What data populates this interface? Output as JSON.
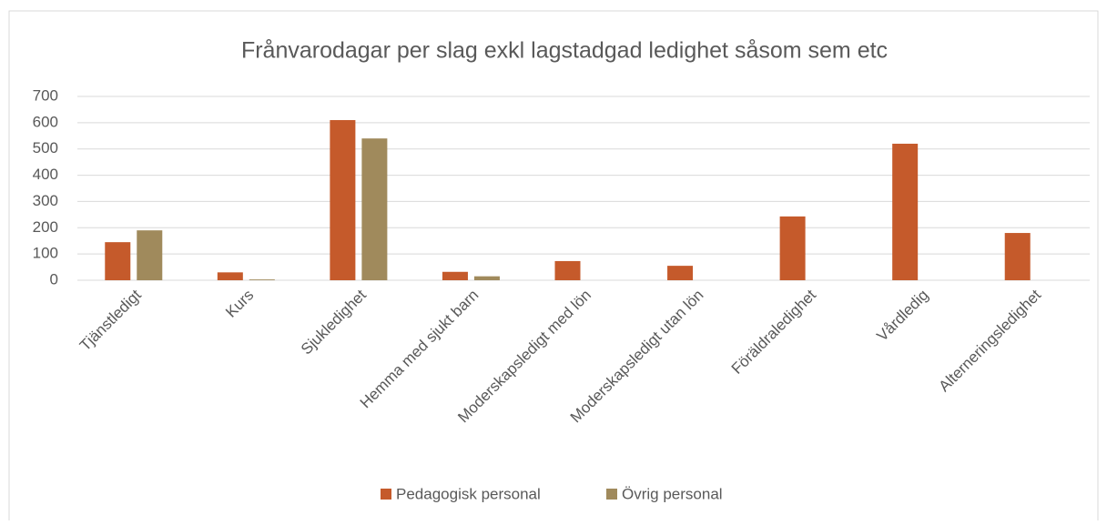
{
  "chart_data": {
    "type": "bar",
    "title": "Frånvarodagar per slag exkl lagstadgad ledighet såsom sem etc",
    "categories": [
      "Tjänstledigt",
      "Kurs",
      "Sjukledighet",
      "Hemma med sjukt barn",
      "Moderskapsledigt med lön",
      "Moderskapsledigt utan lön",
      "Föräldraledighet",
      "Vårdledig",
      "Alterneringsledighet"
    ],
    "series": [
      {
        "name": "Pedagogisk personal",
        "color": "#c55a2b",
        "values": [
          145,
          30,
          610,
          32,
          73,
          55,
          243,
          520,
          180
        ]
      },
      {
        "name": "Övrig personal",
        "color": "#a08a5c",
        "values": [
          190,
          3,
          540,
          15,
          0,
          0,
          0,
          0,
          0
        ]
      }
    ],
    "ylim": [
      0,
      700
    ],
    "yticks": [
      0,
      100,
      200,
      300,
      400,
      500,
      600,
      700
    ],
    "grid": true,
    "legend": "bottom"
  }
}
